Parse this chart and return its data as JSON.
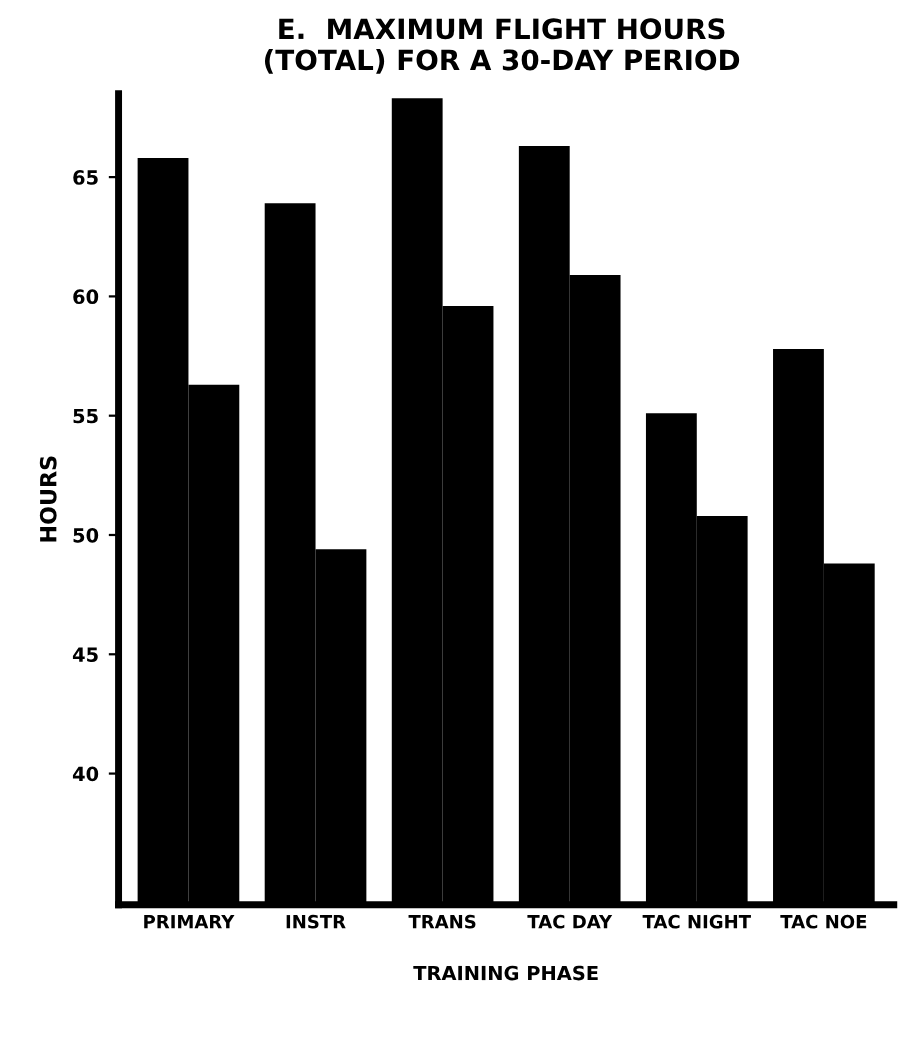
{
  "chart_data": {
    "type": "bar",
    "title": "E.  MAXIMUM FLIGHT HOURS\n(TOTAL) FOR A 30-DAY PERIOD",
    "xlabel": "TRAINING PHASE",
    "ylabel": "HOURS",
    "categories": [
      "PRIMARY",
      "INSTR",
      "TRANS",
      "TAC DAY",
      "TAC NIGHT",
      "TAC NOE"
    ],
    "series": [
      {
        "color": "#000000",
        "values": [
          65.8,
          63.9,
          68.3,
          66.3,
          55.1,
          57.8
        ]
      },
      {
        "color": "#000000",
        "values": [
          56.3,
          49.4,
          59.6,
          60.9,
          50.8,
          48.8
        ]
      }
    ],
    "ylim": [
      34.5,
      68.5
    ],
    "yticks": [
      40,
      45,
      50,
      55,
      60,
      65
    ],
    "grid": false,
    "legend": false
  }
}
